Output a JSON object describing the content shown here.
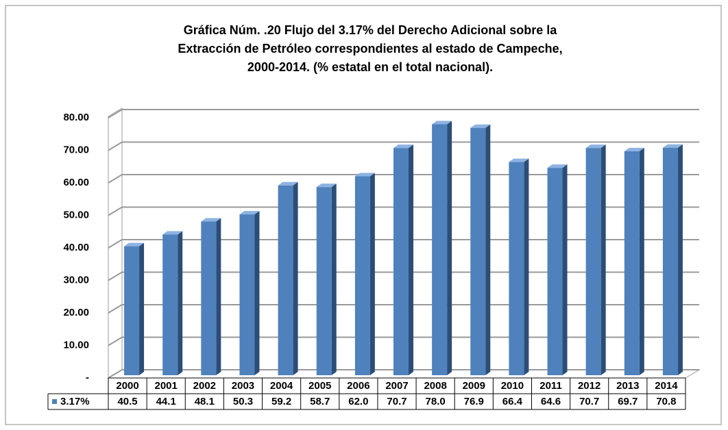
{
  "chart_data": {
    "type": "bar3d",
    "title": "Gráfica Núm. .20 Flujo del 3.17% del Derecho Adicional sobre la",
    "title_line2": "Extracción de Petróleo correspondientes al estado de Campeche,",
    "title_line3": "2000-2014. (% estatal en el total nacional).",
    "categories": [
      "2000",
      "2001",
      "2002",
      "2003",
      "2004",
      "2005",
      "2006",
      "2007",
      "2008",
      "2009",
      "2010",
      "2011",
      "2012",
      "2013",
      "2014"
    ],
    "series": [
      {
        "name": "3.17%",
        "color": "#4f81bd",
        "values": [
          40.5,
          44.1,
          48.1,
          50.3,
          59.2,
          58.7,
          62.0,
          70.7,
          78.0,
          76.9,
          66.4,
          64.6,
          70.7,
          69.7,
          70.8
        ],
        "value_labels": [
          "40.5",
          "44.1",
          "48.1",
          "50.3",
          "59.2",
          "58.7",
          "62.0",
          "70.7",
          "78.0",
          "76.9",
          "66.4",
          "64.6",
          "70.7",
          "69.7",
          "70.8"
        ]
      }
    ],
    "ylim": [
      0,
      80
    ],
    "yticks": [
      {
        "value": 0,
        "label": "-"
      },
      {
        "value": 10,
        "label": "10.00"
      },
      {
        "value": 20,
        "label": "20.00"
      },
      {
        "value": 30,
        "label": "30.00"
      },
      {
        "value": 40,
        "label": "40.00"
      },
      {
        "value": 50,
        "label": "50.00"
      },
      {
        "value": 60,
        "label": "60.00"
      },
      {
        "value": 70,
        "label": "70.00"
      },
      {
        "value": 80,
        "label": "80.00"
      }
    ],
    "grid": true,
    "legend": "table"
  }
}
